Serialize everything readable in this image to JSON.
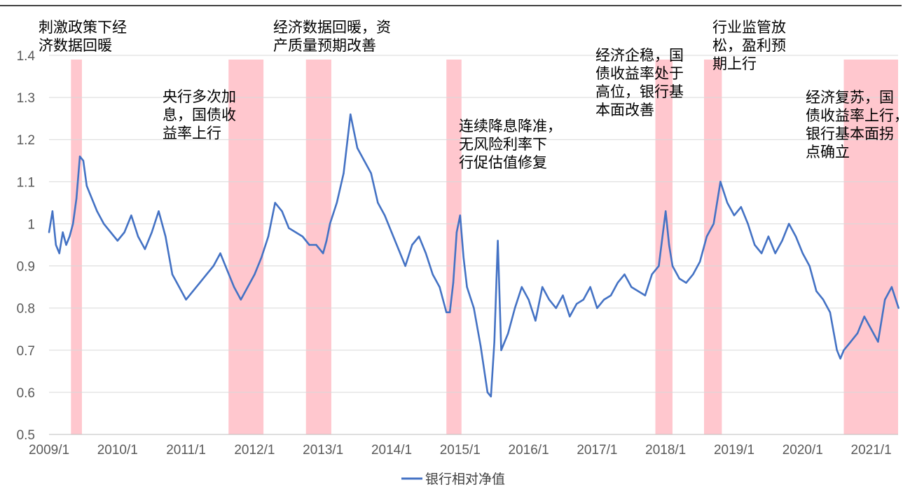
{
  "chart_data": {
    "type": "line",
    "title": "",
    "xlabel": "",
    "ylabel": "",
    "ylim": [
      0.5,
      1.4
    ],
    "yticks": [
      "0.5",
      "0.6",
      "0.7",
      "0.8",
      "0.9",
      "1",
      "1.1",
      "1.2",
      "1.3",
      "1.4"
    ],
    "xlim": [
      2009.0,
      2021.4
    ],
    "xticks": [
      "2009/1",
      "2010/1",
      "2011/1",
      "2012/1",
      "2013/1",
      "2014/1",
      "2015/1",
      "2016/1",
      "2017/1",
      "2018/1",
      "2019/1",
      "2020/1",
      "2021/1"
    ],
    "grid": "horizontal",
    "legend_position": "bottom",
    "colors": {
      "line": "#4472C4",
      "band": "#FFC7CE",
      "grid": "#D9D9D9",
      "axis": "#BFBFBF"
    },
    "series": [
      {
        "name": "银行相对净值",
        "x": [
          2009.0,
          2009.05,
          2009.1,
          2009.15,
          2009.2,
          2009.25,
          2009.3,
          2009.35,
          2009.4,
          2009.45,
          2009.5,
          2009.55,
          2009.6,
          2009.7,
          2009.8,
          2009.9,
          2010.0,
          2010.1,
          2010.2,
          2010.3,
          2010.4,
          2010.5,
          2010.6,
          2010.7,
          2010.8,
          2010.9,
          2011.0,
          2011.1,
          2011.2,
          2011.3,
          2011.4,
          2011.5,
          2011.6,
          2011.7,
          2011.8,
          2011.9,
          2012.0,
          2012.1,
          2012.2,
          2012.3,
          2012.4,
          2012.5,
          2012.6,
          2012.7,
          2012.8,
          2012.9,
          2013.0,
          2013.05,
          2013.1,
          2013.2,
          2013.3,
          2013.4,
          2013.5,
          2013.6,
          2013.7,
          2013.8,
          2013.9,
          2014.0,
          2014.1,
          2014.2,
          2014.3,
          2014.4,
          2014.5,
          2014.6,
          2014.7,
          2014.8,
          2014.85,
          2014.9,
          2014.95,
          2015.0,
          2015.05,
          2015.1,
          2015.2,
          2015.3,
          2015.4,
          2015.45,
          2015.5,
          2015.55,
          2015.6,
          2015.7,
          2015.8,
          2015.9,
          2016.0,
          2016.1,
          2016.2,
          2016.3,
          2016.4,
          2016.5,
          2016.6,
          2016.7,
          2016.8,
          2016.9,
          2017.0,
          2017.1,
          2017.2,
          2017.3,
          2017.4,
          2017.5,
          2017.6,
          2017.7,
          2017.8,
          2017.9,
          2018.0,
          2018.05,
          2018.1,
          2018.2,
          2018.3,
          2018.4,
          2018.5,
          2018.6,
          2018.7,
          2018.8,
          2018.9,
          2019.0,
          2019.1,
          2019.2,
          2019.3,
          2019.4,
          2019.5,
          2019.6,
          2019.7,
          2019.8,
          2019.9,
          2020.0,
          2020.1,
          2020.2,
          2020.3,
          2020.4,
          2020.5,
          2020.55,
          2020.6,
          2020.7,
          2020.8,
          2020.9,
          2021.0,
          2021.1,
          2021.2,
          2021.3,
          2021.4
        ],
        "values": [
          0.98,
          1.03,
          0.95,
          0.93,
          0.98,
          0.95,
          0.97,
          1.0,
          1.06,
          1.16,
          1.15,
          1.09,
          1.07,
          1.03,
          1.0,
          0.98,
          0.96,
          0.98,
          1.02,
          0.97,
          0.94,
          0.98,
          1.03,
          0.97,
          0.88,
          0.85,
          0.82,
          0.84,
          0.86,
          0.88,
          0.9,
          0.93,
          0.89,
          0.85,
          0.82,
          0.85,
          0.88,
          0.92,
          0.97,
          1.05,
          1.03,
          0.99,
          0.98,
          0.97,
          0.95,
          0.95,
          0.93,
          0.96,
          1.0,
          1.05,
          1.12,
          1.26,
          1.18,
          1.15,
          1.12,
          1.05,
          1.02,
          0.98,
          0.94,
          0.9,
          0.95,
          0.97,
          0.93,
          0.88,
          0.85,
          0.79,
          0.79,
          0.86,
          0.98,
          1.02,
          0.92,
          0.85,
          0.8,
          0.71,
          0.6,
          0.59,
          0.72,
          0.96,
          0.7,
          0.74,
          0.8,
          0.85,
          0.82,
          0.77,
          0.85,
          0.82,
          0.8,
          0.83,
          0.78,
          0.81,
          0.82,
          0.85,
          0.8,
          0.82,
          0.83,
          0.86,
          0.88,
          0.85,
          0.84,
          0.83,
          0.88,
          0.9,
          1.03,
          0.95,
          0.9,
          0.87,
          0.86,
          0.88,
          0.91,
          0.97,
          1.0,
          1.1,
          1.05,
          1.02,
          1.04,
          1.0,
          0.95,
          0.93,
          0.97,
          0.93,
          0.96,
          1.0,
          0.97,
          0.93,
          0.9,
          0.84,
          0.82,
          0.79,
          0.7,
          0.68,
          0.7,
          0.72,
          0.74,
          0.78,
          0.75,
          0.72,
          0.82,
          0.85,
          0.8
        ]
      }
    ],
    "shaded_periods": [
      {
        "start": 2009.32,
        "end": 2009.48
      },
      {
        "start": 2011.62,
        "end": 2012.13
      },
      {
        "start": 2012.75,
        "end": 2013.12
      },
      {
        "start": 2014.8,
        "end": 2015.02
      },
      {
        "start": 2017.85,
        "end": 2018.1
      },
      {
        "start": 2018.56,
        "end": 2018.82
      },
      {
        "start": 2020.6,
        "end": 2021.42
      }
    ],
    "annotations": [
      {
        "lines": [
          "刺激政策下经",
          "济数据回暖"
        ]
      },
      {
        "lines": [
          "央行多次加",
          "息，国债收",
          "益率上行"
        ]
      },
      {
        "lines": [
          "经济数据回暖，资",
          "产质量预期改善"
        ]
      },
      {
        "lines": [
          "连续降息降准，",
          "无风险利率下",
          "行促估值修复"
        ]
      },
      {
        "lines": [
          "经济企稳，国",
          "债收益率处于",
          "高位，银行基",
          "本面改善"
        ]
      },
      {
        "lines": [
          "行业监管放",
          "松，盈利预",
          "期上行"
        ]
      },
      {
        "lines": [
          "经济复苏，国",
          "债收益率上行，",
          "银行基本面拐",
          "点确立"
        ]
      }
    ]
  }
}
